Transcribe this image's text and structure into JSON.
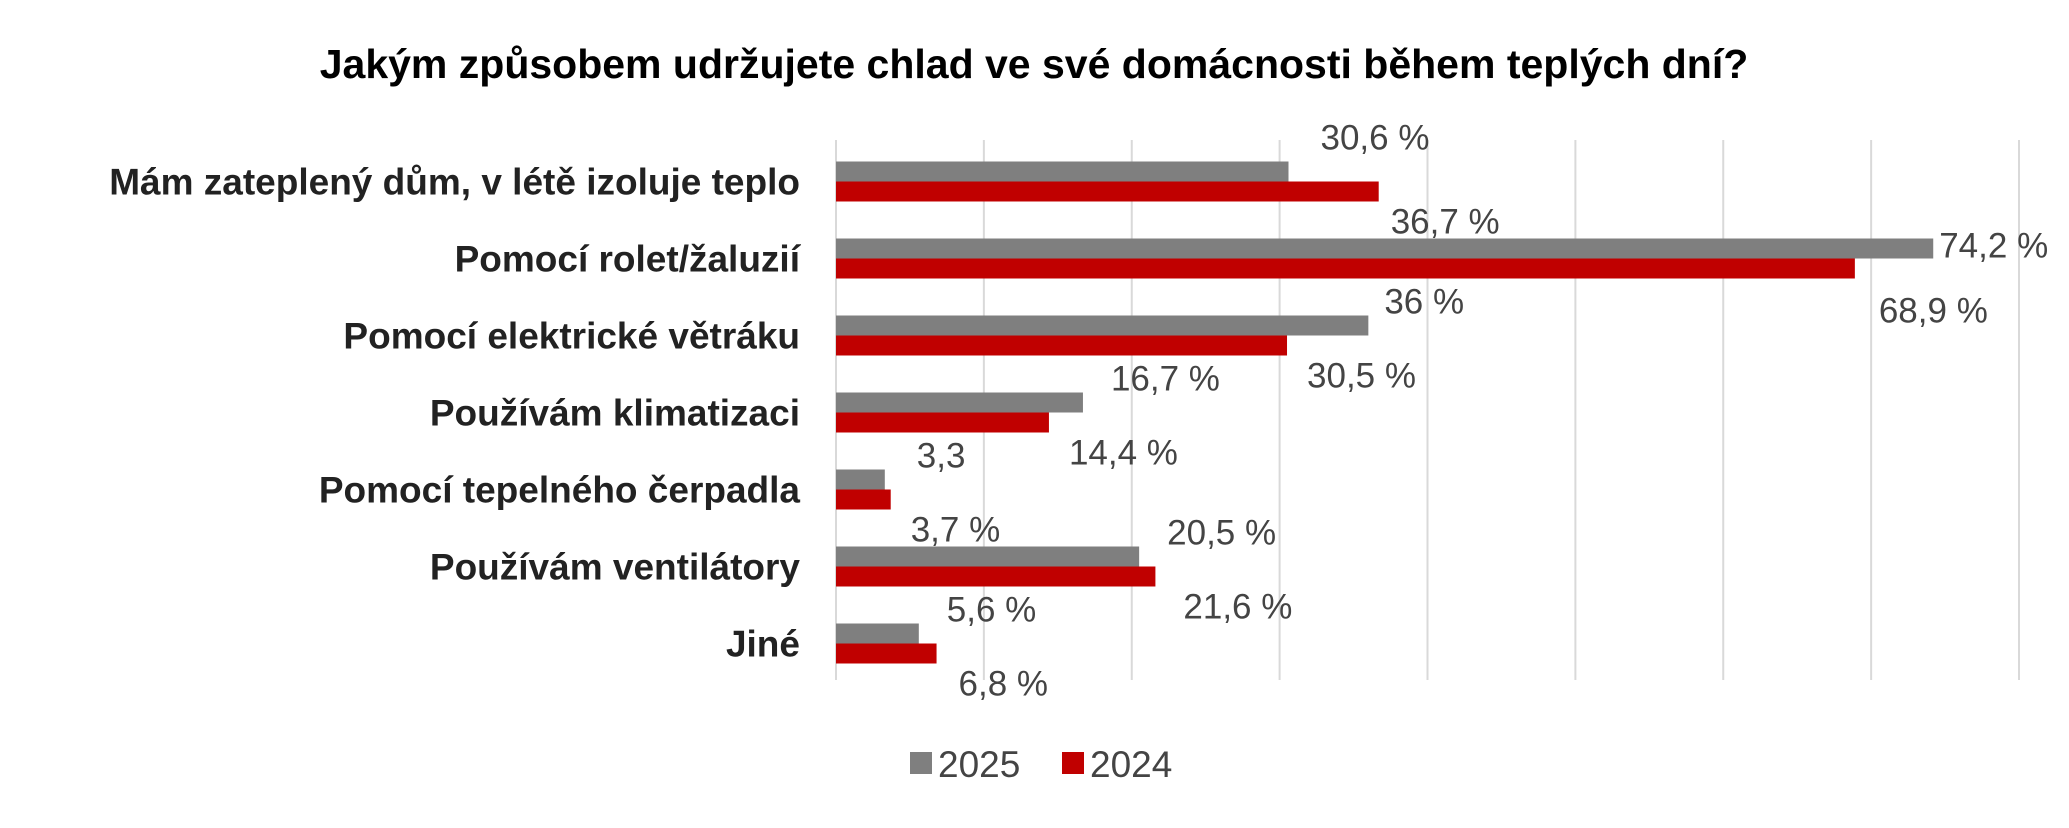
{
  "chart_data": {
    "type": "bar",
    "orientation": "horizontal",
    "title": "Jakým způsobem udržujete chlad ve své domácnosti během teplých dní?",
    "categories": [
      "Mám zateplený dům, v létě izoluje teplo",
      "Pomocí rolet/žaluzií",
      "Pomocí elektrické větráku",
      "Používám klimatizaci",
      "Pomocí tepelného čerpadla",
      "Používám ventilátory",
      "Jiné"
    ],
    "series": [
      {
        "name": "2025",
        "color": "#7f7f7f",
        "values": [
          30.6,
          74.2,
          36,
          16.7,
          3.3,
          20.5,
          5.6
        ],
        "labels": [
          "30,6 %",
          "74,2 %",
          "36 %",
          "16,7 %",
          "3,3",
          "20,5 %",
          "5,6 %"
        ]
      },
      {
        "name": "2024",
        "color": "#c00000",
        "values": [
          36.7,
          68.9,
          30.5,
          14.4,
          3.7,
          21.6,
          6.8
        ],
        "labels": [
          "36,7 %",
          "68,9 %",
          "30,5 %",
          "14,4 %",
          "3,7 %",
          "21,6 %",
          "6,8 %"
        ]
      }
    ],
    "xlim": [
      0,
      80
    ],
    "grid": true,
    "x_tick_labels_shown": false,
    "legend": "bottom"
  }
}
